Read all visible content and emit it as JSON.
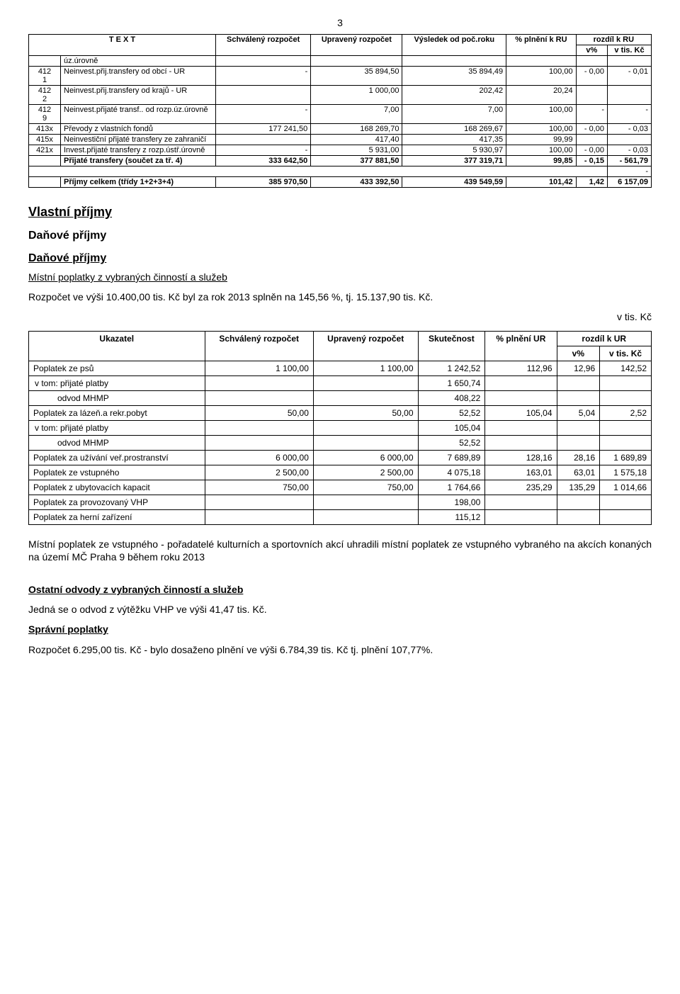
{
  "pageNumber": "3",
  "table1": {
    "header": {
      "c1": "T E X T",
      "c2": "Schválený rozpočet",
      "c3": "Upravený rozpočet",
      "c4": "Výsledek od poč.roku",
      "c5": "% plnění k RU",
      "c6": "rozdíl k RU",
      "c6a": "v%",
      "c6b": "v tis. Kč"
    },
    "rows": [
      {
        "code": "",
        "label": "úz.úrovně"
      },
      {
        "code": "412 1",
        "label": "Neinvest.přij.transfery od obcí - UR",
        "c2": "-",
        "c3": "35 894,50",
        "c4": "35 894,49",
        "c5": "100,00",
        "c6a": "- 0,00",
        "c6b": "- 0,01"
      },
      {
        "code": "412 2",
        "label": "Neinvest.přij.transfery od krajů - UR",
        "c2": "",
        "c3": "1 000,00",
        "c4": "202,42",
        "c5": "20,24"
      },
      {
        "code": "412 9",
        "label": "Neinvest.přijaté transf.. od rozp.úz.úrovně",
        "c2": "-",
        "c3": "7,00",
        "c4": "7,00",
        "c5": "100,00",
        "c6a": "-",
        "c6b": "-"
      },
      {
        "code": "413x",
        "label": "Převody z vlastních fondů",
        "c2": "177 241,50",
        "c3": "168 269,70",
        "c4": "168 269,67",
        "c5": "100,00",
        "c6a": "- 0,00",
        "c6b": "- 0,03"
      },
      {
        "code": "415x",
        "label": "Neinvestiční přijaté transfery ze zahraničí",
        "c2": "",
        "c3": "417,40",
        "c4": "417,35",
        "c5": "99,99"
      },
      {
        "code": "421x",
        "label": "Invest.přijaté transfery z rozp.ústř.úrovně",
        "c2": "-",
        "c3": "5 931,00",
        "c4": "5 930,97",
        "c5": "100,00",
        "c6a": "- 0,00",
        "c6b": "- 0,03"
      },
      {
        "code": "",
        "label": "Přijaté transfery (součet za tř. 4)",
        "bold": true,
        "c2": "333 642,50",
        "c3": "377 881,50",
        "c4": "377 319,71",
        "c5": "99,85",
        "c6a": "- 0,15",
        "c6b": "- 561,79"
      },
      {
        "blank": true,
        "c6b": "-"
      },
      {
        "code": "",
        "label": "Příjmy celkem (třídy 1+2+3+4)",
        "bold": true,
        "c2": "385 970,50",
        "c3": "433 392,50",
        "c4": "439 549,59",
        "c5": "101,42",
        "c6a": "1,42",
        "c6b": "6 157,09"
      }
    ]
  },
  "h_vlastni": "Vlastní příjmy",
  "h_danove1": "Daňové příjmy",
  "h_danove2": "Daňové příjmy",
  "h_mistni": "Místní poplatky z vybraných činností a služeb",
  "p_mistni": "Rozpočet ve výši 10.400,00 tis. Kč byl za rok 2013 splněn na 145,56 %, tj. 15.137,90 tis. Kč.",
  "vtiskc": "v tis. Kč",
  "table2": {
    "header": {
      "c1": "Ukazatel",
      "c2": "Schválený rozpočet",
      "c3": "Upravený rozpočet",
      "c4": "Skutečnost",
      "c5": "% plnění UR",
      "c6": "rozdíl k UR",
      "c6a": "v%",
      "c6b": "v tis. Kč"
    },
    "rows": [
      {
        "label": "Poplatek ze psů",
        "c2": "1 100,00",
        "c3": "1 100,00",
        "c4": "1 242,52",
        "c5": "112,96",
        "c6a": "12,96",
        "c6b": "142,52"
      },
      {
        "label": "v tom: přijaté platby",
        "c4": "1 650,74"
      },
      {
        "label": "odvod MHMP",
        "indent": true,
        "c4": "408,22"
      },
      {
        "label": "Poplatek za lázeň.a rekr.pobyt",
        "c2": "50,00",
        "c3": "50,00",
        "c4": "52,52",
        "c5": "105,04",
        "c6a": "5,04",
        "c6b": "2,52"
      },
      {
        "label": "v tom: přijaté platby",
        "c4": "105,04"
      },
      {
        "label": "odvod MHMP",
        "indent": true,
        "c4": "52,52"
      },
      {
        "label": "Poplatek za užívání veř.prostranství",
        "c2": "6 000,00",
        "c3": "6 000,00",
        "c4": "7 689,89",
        "c5": "128,16",
        "c6a": "28,16",
        "c6b": "1 689,89"
      },
      {
        "label": "Poplatek ze vstupného",
        "c2": "2 500,00",
        "c3": "2 500,00",
        "c4": "4 075,18",
        "c5": "163,01",
        "c6a": "63,01",
        "c6b": "1 575,18"
      },
      {
        "label": "Poplatek z ubytovacích kapacit",
        "c2": "750,00",
        "c3": "750,00",
        "c4": "1 764,66",
        "c5": "235,29",
        "c6a": "135,29",
        "c6b": "1 014,66"
      },
      {
        "label": "Poplatek za provozovaný VHP",
        "c4": "198,00"
      },
      {
        "label": "Poplatek za herní zařízení",
        "c4": "115,12"
      }
    ]
  },
  "p_note": "Místní poplatek ze vstupného - pořadatelé kulturních a sportovních akcí uhradili místní poplatek ze vstupného vybraného na akcích konaných na území MČ Praha 9 během roku 2013",
  "h_ostatni": "Ostatní odvody z vybraných činností a služeb",
  "p_ostatni": "Jedná se o odvod z výtěžku VHP ve výši 41,47 tis. Kč.",
  "h_spravni": "Správní poplatky",
  "p_spravni": "Rozpočet 6.295,00 tis. Kč - bylo dosaženo plnění ve výši 6.784,39 tis. Kč tj. plnění 107,77%."
}
